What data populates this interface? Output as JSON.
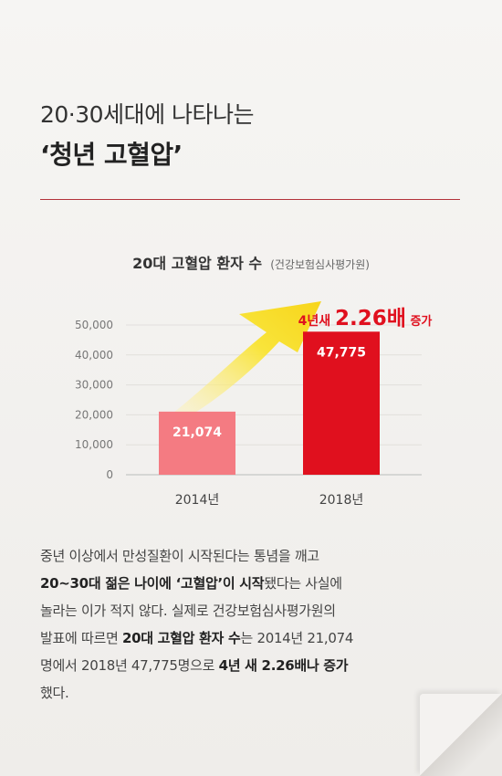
{
  "headline": {
    "line1": "20·30세대에 나타나는",
    "line2": "‘청년 고혈압’"
  },
  "chart_data": {
    "type": "bar",
    "title": "20대 고혈압 환자 수",
    "source": "(건강보험심사평가원)",
    "categories": [
      "2014년",
      "2018년"
    ],
    "values": [
      21074,
      47775
    ],
    "value_labels": [
      "21,074",
      "47,775"
    ],
    "ylim": [
      0,
      50000
    ],
    "yticks": [
      "0",
      "10,000",
      "20,000",
      "30,000",
      "40,000",
      "50,000"
    ],
    "ytick_values": [
      0,
      10000,
      20000,
      30000,
      40000,
      50000
    ],
    "grid": true,
    "colors": [
      "#f47b82",
      "#e0101e"
    ],
    "annotation": {
      "prefix": "4년새 ",
      "value": "2.26배",
      "suffix": " 증가"
    }
  },
  "body": {
    "p1": "중년 이상에서 만성질환이 시작된다는 통념을 깨고",
    "p2_bold": "20~30대 젊은 나이에 ‘고혈압’이 시작",
    "p2_rest": "됐다는 사실에",
    "p3": "놀라는 이가 적지 않다. 실제로 건강보험심사평가원의",
    "p4_pre": "발표에 따르면 ",
    "p4_bold": "20대 고혈압 환자 수",
    "p4_post": "는 2014년 21,074",
    "p5_pre": "명에서 2018년 47,775명으로 ",
    "p5_bold": "4년 새 2.26배나 증가",
    "p6": "했다."
  }
}
